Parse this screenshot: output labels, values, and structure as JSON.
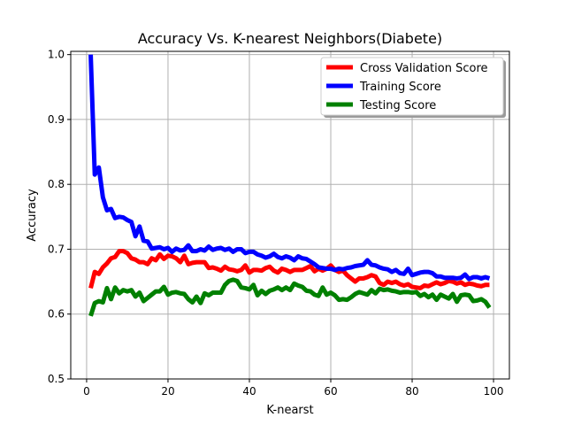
{
  "chart_data": {
    "type": "line",
    "title": "Accuracy Vs. K-nearest Neighbors(Diabete)",
    "xlabel": "K-nearst",
    "ylabel": "Accuracy",
    "xlim": [
      -3.9,
      103.9
    ],
    "ylim": [
      0.5,
      1.005
    ],
    "xticks": [
      0,
      20,
      40,
      60,
      80,
      100
    ],
    "yticks": [
      0.5,
      0.6,
      0.7,
      0.8,
      0.9,
      1.0
    ],
    "xtick_labels": [
      "0",
      "20",
      "40",
      "60",
      "80",
      "100"
    ],
    "ytick_labels": [
      "0.5",
      "0.6",
      "0.7",
      "0.8",
      "0.9",
      "1.0"
    ],
    "grid": true,
    "legend": "top-right",
    "x": [
      1,
      2,
      3,
      4,
      5,
      6,
      7,
      8,
      9,
      10,
      11,
      12,
      13,
      14,
      15,
      16,
      17,
      18,
      19,
      20,
      21,
      22,
      23,
      24,
      25,
      26,
      27,
      28,
      29,
      30,
      31,
      32,
      33,
      34,
      35,
      36,
      37,
      38,
      39,
      40,
      41,
      42,
      43,
      44,
      45,
      46,
      47,
      48,
      49,
      50,
      51,
      52,
      53,
      54,
      55,
      56,
      57,
      58,
      59,
      60,
      61,
      62,
      63,
      64,
      65,
      66,
      67,
      68,
      69,
      70,
      71,
      72,
      73,
      74,
      75,
      76,
      77,
      78,
      79,
      80,
      81,
      82,
      83,
      84,
      85,
      86,
      87,
      88,
      89,
      90,
      91,
      92,
      93,
      94,
      95,
      96,
      97,
      98,
      99
    ],
    "series": [
      {
        "name": "Cross Validation Score",
        "color": "#ff0000",
        "values": [
          0.64,
          0.665,
          0.662,
          0.672,
          0.678,
          0.686,
          0.688,
          0.697,
          0.697,
          0.694,
          0.686,
          0.684,
          0.68,
          0.68,
          0.677,
          0.686,
          0.683,
          0.692,
          0.685,
          0.69,
          0.689,
          0.686,
          0.68,
          0.69,
          0.677,
          0.679,
          0.68,
          0.68,
          0.68,
          0.671,
          0.672,
          0.67,
          0.667,
          0.673,
          0.669,
          0.668,
          0.666,
          0.668,
          0.675,
          0.664,
          0.668,
          0.668,
          0.667,
          0.671,
          0.673,
          0.667,
          0.664,
          0.67,
          0.668,
          0.665,
          0.668,
          0.668,
          0.668,
          0.671,
          0.674,
          0.666,
          0.67,
          0.667,
          0.67,
          0.675,
          0.668,
          0.665,
          0.667,
          0.66,
          0.655,
          0.65,
          0.655,
          0.655,
          0.657,
          0.66,
          0.658,
          0.648,
          0.645,
          0.65,
          0.648,
          0.65,
          0.646,
          0.644,
          0.646,
          0.642,
          0.641,
          0.64,
          0.644,
          0.643,
          0.646,
          0.649,
          0.646,
          0.648,
          0.651,
          0.65,
          0.647,
          0.649,
          0.645,
          0.647,
          0.646,
          0.644,
          0.643,
          0.645,
          0.645
        ]
      },
      {
        "name": "Training Score",
        "color": "#0000ff",
        "values": [
          1.0,
          0.815,
          0.826,
          0.78,
          0.76,
          0.762,
          0.748,
          0.75,
          0.749,
          0.745,
          0.742,
          0.72,
          0.735,
          0.713,
          0.712,
          0.701,
          0.702,
          0.703,
          0.7,
          0.702,
          0.696,
          0.701,
          0.698,
          0.699,
          0.706,
          0.697,
          0.697,
          0.7,
          0.698,
          0.704,
          0.699,
          0.701,
          0.702,
          0.699,
          0.701,
          0.696,
          0.7,
          0.7,
          0.694,
          0.696,
          0.696,
          0.692,
          0.69,
          0.687,
          0.689,
          0.693,
          0.688,
          0.686,
          0.689,
          0.687,
          0.683,
          0.689,
          0.686,
          0.685,
          0.681,
          0.677,
          0.672,
          0.671,
          0.67,
          0.67,
          0.668,
          0.67,
          0.669,
          0.671,
          0.672,
          0.674,
          0.675,
          0.676,
          0.683,
          0.676,
          0.675,
          0.672,
          0.67,
          0.669,
          0.665,
          0.668,
          0.663,
          0.662,
          0.67,
          0.66,
          0.662,
          0.664,
          0.665,
          0.665,
          0.663,
          0.658,
          0.658,
          0.656,
          0.656,
          0.656,
          0.655,
          0.656,
          0.661,
          0.654,
          0.657,
          0.657,
          0.655,
          0.657,
          0.655
        ]
      },
      {
        "name": "Testing Score",
        "color": "#008000",
        "values": [
          0.597,
          0.617,
          0.62,
          0.618,
          0.64,
          0.623,
          0.641,
          0.632,
          0.637,
          0.635,
          0.637,
          0.627,
          0.633,
          0.62,
          0.625,
          0.63,
          0.635,
          0.635,
          0.642,
          0.63,
          0.633,
          0.634,
          0.632,
          0.631,
          0.623,
          0.618,
          0.627,
          0.617,
          0.632,
          0.629,
          0.633,
          0.633,
          0.633,
          0.645,
          0.651,
          0.653,
          0.651,
          0.641,
          0.64,
          0.638,
          0.645,
          0.629,
          0.636,
          0.631,
          0.636,
          0.638,
          0.641,
          0.637,
          0.641,
          0.637,
          0.647,
          0.644,
          0.642,
          0.636,
          0.635,
          0.63,
          0.628,
          0.641,
          0.63,
          0.633,
          0.629,
          0.622,
          0.623,
          0.622,
          0.626,
          0.631,
          0.634,
          0.632,
          0.63,
          0.637,
          0.632,
          0.639,
          0.637,
          0.638,
          0.636,
          0.635,
          0.633,
          0.634,
          0.634,
          0.633,
          0.634,
          0.628,
          0.631,
          0.626,
          0.63,
          0.622,
          0.63,
          0.627,
          0.624,
          0.631,
          0.619,
          0.629,
          0.63,
          0.629,
          0.62,
          0.621,
          0.623,
          0.619,
          0.61
        ]
      }
    ]
  }
}
